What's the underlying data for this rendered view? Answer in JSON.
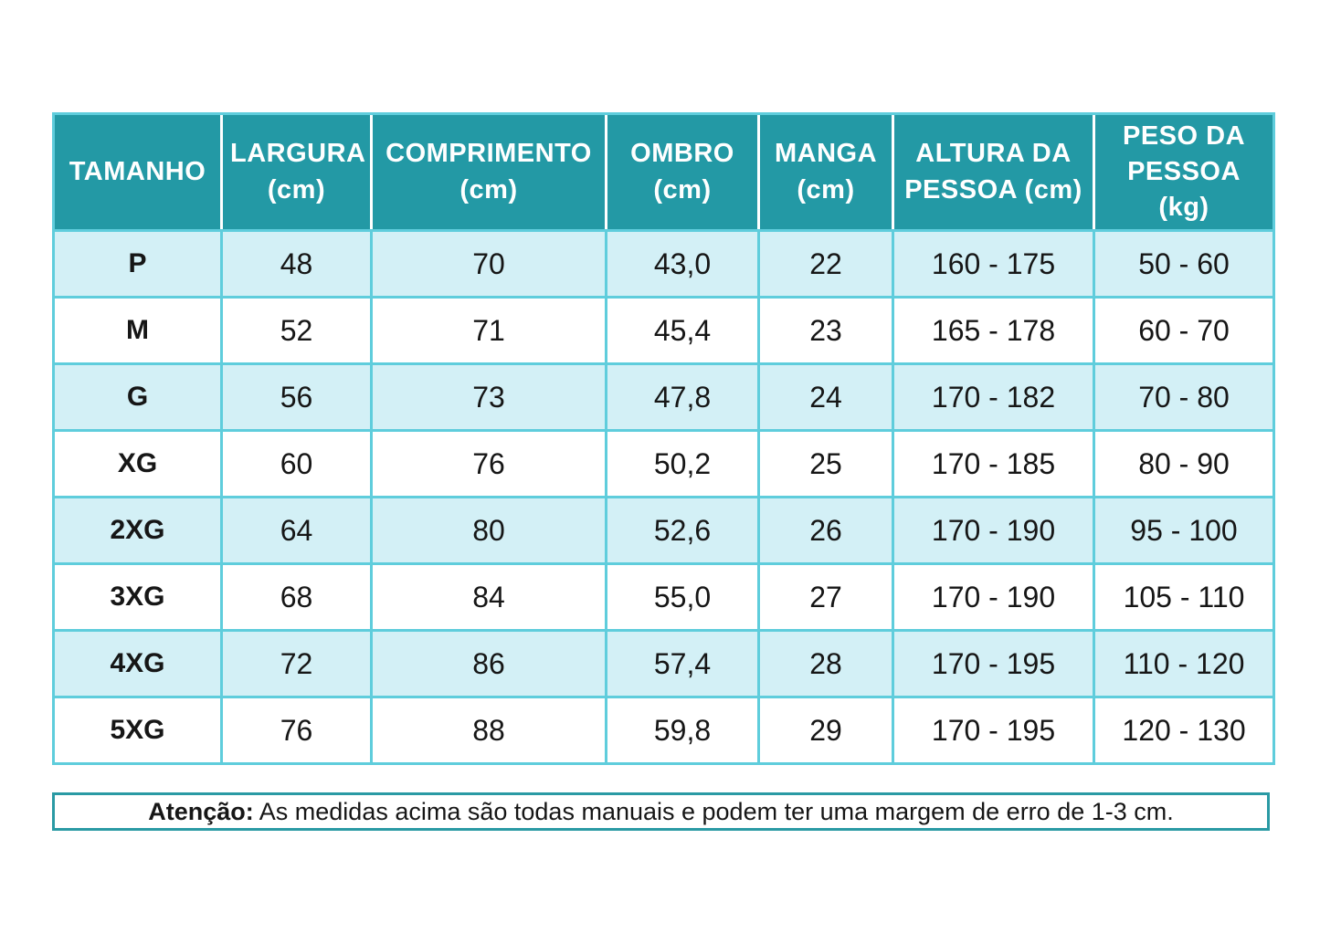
{
  "table": {
    "columns": [
      {
        "key": "tamanho",
        "label": "TAMANHO"
      },
      {
        "key": "largura",
        "label": "LARGURA (cm)"
      },
      {
        "key": "comprimento",
        "label": "COMPRIMENTO (cm)"
      },
      {
        "key": "ombro",
        "label": "OMBRO (cm)"
      },
      {
        "key": "manga",
        "label": "MANGA (cm)"
      },
      {
        "key": "altura-da-pessoa",
        "label": "ALTURA DA PESSOA (cm)"
      },
      {
        "key": "peso-da-pessoa",
        "label": "PESO DA PESSOA (kg)"
      }
    ],
    "rows": [
      {
        "size": "P",
        "values": [
          "48",
          "70",
          "43,0",
          "22",
          "160 - 175",
          "50 - 60"
        ]
      },
      {
        "size": "M",
        "values": [
          "52",
          "71",
          "45,4",
          "23",
          "165 - 178",
          "60 - 70"
        ]
      },
      {
        "size": "G",
        "values": [
          "56",
          "73",
          "47,8",
          "24",
          "170 - 182",
          "70 - 80"
        ]
      },
      {
        "size": "XG",
        "values": [
          "60",
          "76",
          "50,2",
          "25",
          "170 - 185",
          "80 - 90"
        ]
      },
      {
        "size": "2XG",
        "values": [
          "64",
          "80",
          "52,6",
          "26",
          "170 - 190",
          "95 - 100"
        ]
      },
      {
        "size": "3XG",
        "values": [
          "68",
          "84",
          "55,0",
          "27",
          "170 - 190",
          "105 - 110"
        ]
      },
      {
        "size": "4XG",
        "values": [
          "72",
          "86",
          "57,4",
          "28",
          "170 - 195",
          "110 - 120"
        ]
      },
      {
        "size": "5XG",
        "values": [
          "76",
          "88",
          "59,8",
          "29",
          "170 - 195",
          "120 - 130"
        ]
      }
    ]
  },
  "note": {
    "label": "Atenção:",
    "text": " As medidas acima são todas manuais e podem ter uma margem de erro de 1-3 cm."
  },
  "colors": {
    "header_bg": "#2399a5",
    "alt_row_bg": "#d3f0f6",
    "grid": "#5fcddc",
    "note_border": "#2a9aa4",
    "text": "#161616"
  }
}
